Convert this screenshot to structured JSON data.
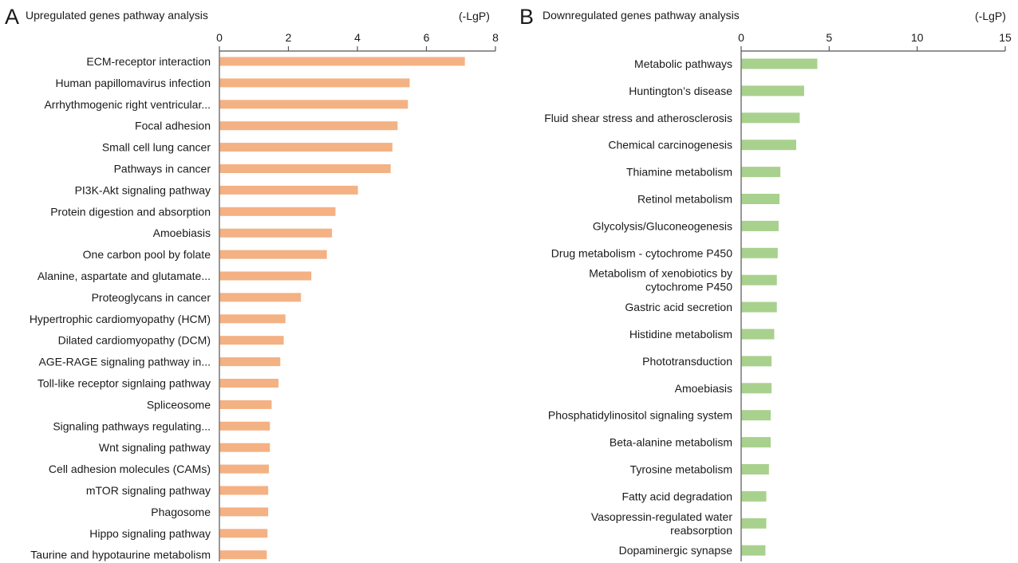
{
  "chart_data": [
    {
      "type": "bar",
      "orientation": "horizontal",
      "panel_letter": "A",
      "title": "Upregulated genes pathway analysis",
      "xlabel": "(-LgP)",
      "ylabel": "",
      "xlim": [
        0,
        8
      ],
      "xticks": [
        0,
        2,
        4,
        6,
        8
      ],
      "grid": false,
      "bar_color": "#f4b183",
      "categories": [
        "ECM-receptor interaction",
        "Human papillomavirus infection",
        "Arrhythmogenic right ventricular...",
        "Focal adhesion",
        "Small cell lung cancer",
        "Pathways in cancer",
        "PI3K-Akt signaling pathway",
        "Protein digestion and absorption",
        "Amoebiasis",
        "One carbon pool by folate",
        "Alanine, aspartate and glutamate...",
        "Proteoglycans in cancer",
        "Hypertrophic cardiomyopathy (HCM)",
        "Dilated cardiomyopathy (DCM)",
        "AGE-RAGE signaling pathway in...",
        "Toll-like receptor signlaing pathway",
        "Spliceosome",
        "Signaling pathways regulating...",
        "Wnt signaling pathway",
        "Cell adhesion molecules (CAMs)",
        "mTOR signaling pathway",
        "Phagosome",
        "Hippo signaling pathway",
        "Taurine and hypotaurine metabolism"
      ],
      "values": [
        7.1,
        5.5,
        5.45,
        5.15,
        5.0,
        4.95,
        4.0,
        3.35,
        3.25,
        3.1,
        2.65,
        2.35,
        1.9,
        1.85,
        1.75,
        1.7,
        1.5,
        1.45,
        1.45,
        1.42,
        1.4,
        1.4,
        1.38,
        1.36
      ]
    },
    {
      "type": "bar",
      "orientation": "horizontal",
      "panel_letter": "B",
      "title": "Downregulated genes pathway analysis",
      "xlabel": "(-LgP)",
      "ylabel": "",
      "xlim": [
        0,
        15
      ],
      "xticks": [
        0,
        5,
        10,
        15
      ],
      "grid": false,
      "bar_color": "#a9d18e",
      "categories": [
        "Metabolic pathways",
        "Huntington’s disease",
        "Fluid shear stress and atherosclerosis",
        "Chemical carcinogenesis",
        "Thiamine metabolism",
        "Retinol metabolism",
        "Glycolysis/Gluconeogenesis",
        "Drug metabolism - cytochrome P450",
        "Metabolism of xenobiotics by\ncytochrome P450",
        "Gastric acid secretion",
        "Histidine metabolism",
        "Phototransduction",
        "Amoebiasis",
        "Phosphatidylinositol signaling system",
        "Beta-alanine metabolism",
        "Tyrosine metabolism",
        "Fatty acid degradation",
        "Vasopressin-regulated water\nreabsorption",
        "Dopaminergic synapse"
      ],
      "values": [
        4.3,
        3.55,
        3.3,
        3.1,
        2.2,
        2.15,
        2.1,
        2.05,
        2.0,
        2.0,
        1.85,
        1.7,
        1.7,
        1.65,
        1.65,
        1.55,
        1.4,
        1.4,
        1.35
      ]
    }
  ]
}
